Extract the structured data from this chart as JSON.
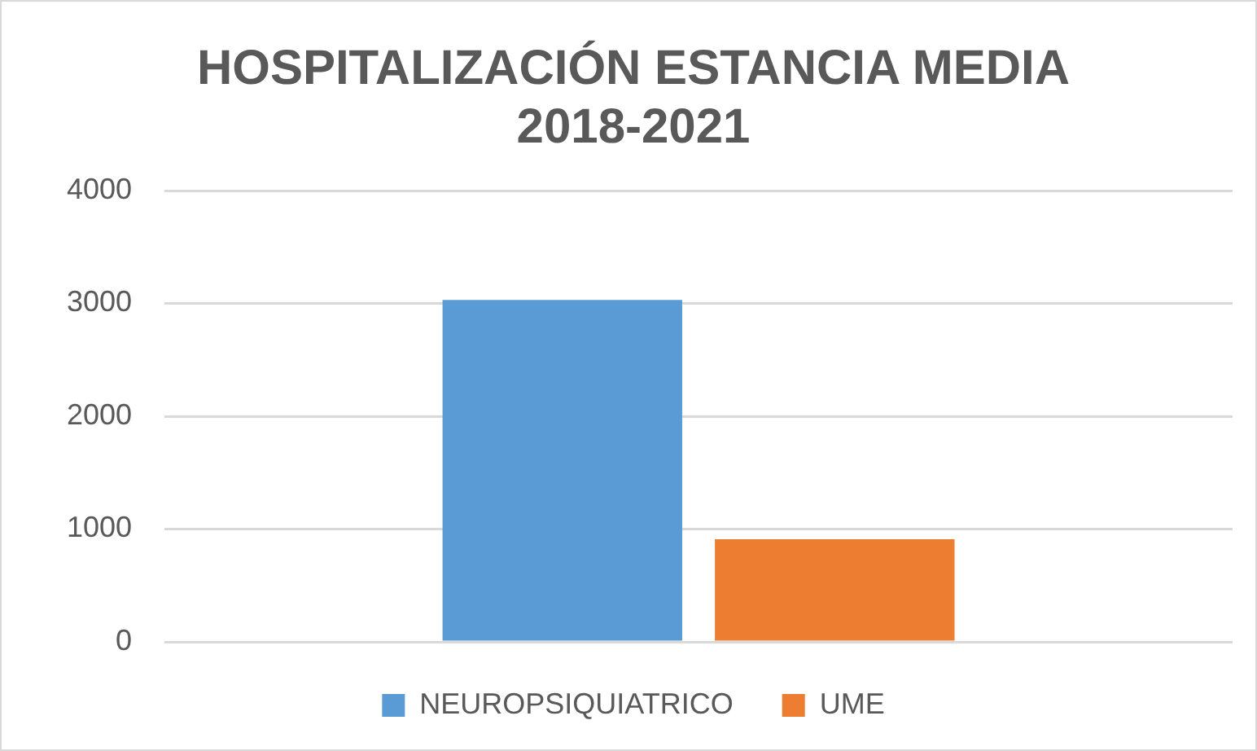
{
  "chart_data": {
    "type": "bar",
    "title": [
      "HOSPITALIZACIÓN ESTANCIA MEDIA",
      "2018-2021"
    ],
    "categories": [
      null
    ],
    "series": [
      {
        "name": "NEUROPSIQUIATRICO",
        "color": "#5b9bd5",
        "values": [
          3030
        ]
      },
      {
        "name": "UME",
        "color": "#ed7d31",
        "values": [
          910
        ]
      }
    ],
    "ylim": [
      0,
      4000
    ],
    "yticks": [
      0,
      1000,
      2000,
      3000,
      4000
    ],
    "grid": "y",
    "legend": "bottom"
  }
}
